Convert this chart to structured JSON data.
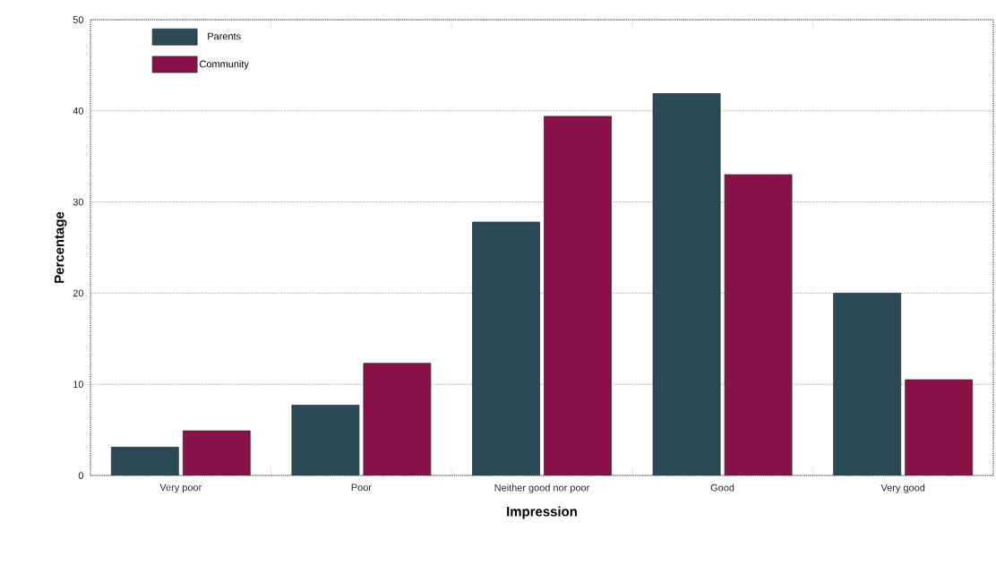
{
  "chart_data": {
    "type": "bar",
    "xlabel": "Impression",
    "ylabel": "Percentage",
    "categories": [
      "Very poor",
      "Poor",
      "Neither good nor poor",
      "Good",
      "Very good"
    ],
    "series": [
      {
        "name": "Parents",
        "color": "#2b4a55",
        "values": [
          3.1,
          7.7,
          27.8,
          41.9,
          20.0
        ]
      },
      {
        "name": "Community",
        "color": "#8a1048",
        "values": [
          4.9,
          12.3,
          39.4,
          33.0,
          10.5
        ]
      }
    ],
    "ylim": [
      0,
      50
    ],
    "yticks": [
      0,
      10,
      20,
      30,
      40,
      50
    ],
    "grid": "y",
    "legend": "top left"
  }
}
